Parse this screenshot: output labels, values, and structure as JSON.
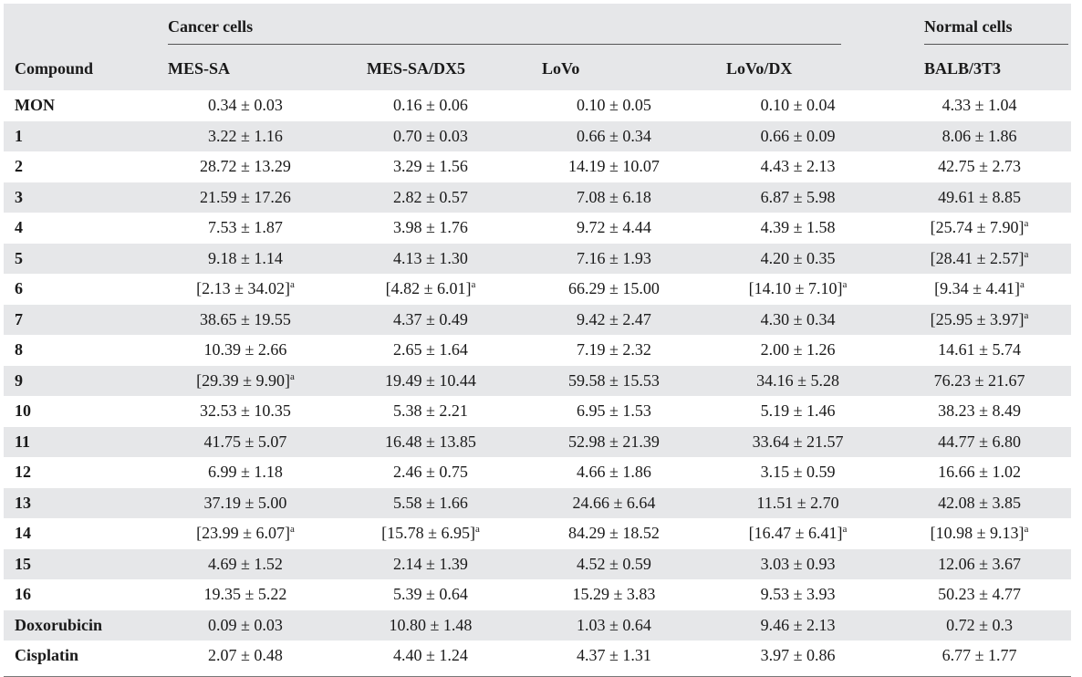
{
  "header": {
    "group_cancer": "Cancer cells",
    "group_normal": "Normal cells",
    "columns": [
      "Compound",
      "MES-SA",
      "MES-SA/DX5",
      "LoVo",
      "LoVo/DX",
      "BALB/3T3"
    ]
  },
  "rows": [
    [
      "MON",
      "0.34 ± 0.03",
      "0.16 ± 0.06",
      "0.10 ± 0.05",
      "0.10 ± 0.04",
      "4.33 ± 1.04"
    ],
    [
      "1",
      "3.22 ± 1.16",
      "0.70 ± 0.03",
      "0.66 ± 0.34",
      "0.66 ± 0.09",
      "8.06 ± 1.86"
    ],
    [
      "2",
      "28.72 ± 13.29",
      "3.29 ± 1.56",
      "14.19 ± 10.07",
      "4.43 ± 2.13",
      "42.75 ± 2.73"
    ],
    [
      "3",
      "21.59 ± 17.26",
      "2.82 ± 0.57",
      "7.08 ± 6.18",
      "6.87 ± 5.98",
      "49.61 ± 8.85"
    ],
    [
      "4",
      "7.53 ± 1.87",
      "3.98 ± 1.76",
      "9.72 ± 4.44",
      "4.39 ± 1.58",
      "[25.74 ± 7.90]^a"
    ],
    [
      "5",
      "9.18 ± 1.14",
      "4.13 ± 1.30",
      "7.16 ± 1.93",
      "4.20 ± 0.35",
      "[28.41 ± 2.57]^a"
    ],
    [
      "6",
      "[2.13 ± 34.02]^a",
      "[4.82 ± 6.01]^a",
      "66.29 ± 15.00",
      "[14.10 ± 7.10]^a",
      "[9.34 ± 4.41]^a"
    ],
    [
      "7",
      "38.65 ± 19.55",
      "4.37 ± 0.49",
      "9.42 ± 2.47",
      "4.30 ± 0.34",
      "[25.95 ± 3.97]^a"
    ],
    [
      "8",
      "10.39 ± 2.66",
      "2.65 ± 1.64",
      "7.19 ± 2.32",
      "2.00 ± 1.26",
      "14.61 ± 5.74"
    ],
    [
      "9",
      "[29.39 ± 9.90]^a",
      "19.49 ± 10.44",
      "59.58 ± 15.53",
      "34.16 ± 5.28",
      "76.23 ± 21.67"
    ],
    [
      "10",
      "32.53 ± 10.35",
      "5.38 ± 2.21",
      "6.95 ± 1.53",
      "5.19 ± 1.46",
      "38.23 ± 8.49"
    ],
    [
      "11",
      "41.75 ± 5.07",
      "16.48 ± 13.85",
      "52.98 ± 21.39",
      "33.64 ± 21.57",
      "44.77 ± 6.80"
    ],
    [
      "12",
      "6.99 ± 1.18",
      "2.46 ± 0.75",
      "4.66 ± 1.86",
      "3.15 ± 0.59",
      "16.66 ± 1.02"
    ],
    [
      "13",
      "37.19 ± 5.00",
      "5.58 ± 1.66",
      "24.66 ± 6.64",
      "11.51 ± 2.70",
      "42.08 ± 3.85"
    ],
    [
      "14",
      "[23.99 ± 6.07]^a",
      "[15.78 ± 6.95]^a",
      "84.29 ± 18.52",
      "[16.47 ± 6.41]^a",
      "[10.98 ± 9.13]^a"
    ],
    [
      "15",
      "4.69 ± 1.52",
      "2.14 ± 1.39",
      "4.52 ± 0.59",
      "3.03 ± 0.93",
      "12.06 ± 3.67"
    ],
    [
      "16",
      "19.35 ± 5.22",
      "5.39 ± 0.64",
      "15.29 ± 3.83",
      "9.53 ± 3.93",
      "50.23 ± 4.77"
    ],
    [
      "Doxorubicin",
      "0.09 ± 0.03",
      "10.80 ± 1.48",
      "1.03 ± 0.64",
      "9.46 ± 2.13",
      "0.72 ± 0.3"
    ],
    [
      "Cisplatin",
      "2.07 ± 0.48",
      "4.40 ± 1.24",
      "4.37 ± 1.31",
      "3.97 ± 0.86",
      "6.77 ± 1.77"
    ]
  ]
}
